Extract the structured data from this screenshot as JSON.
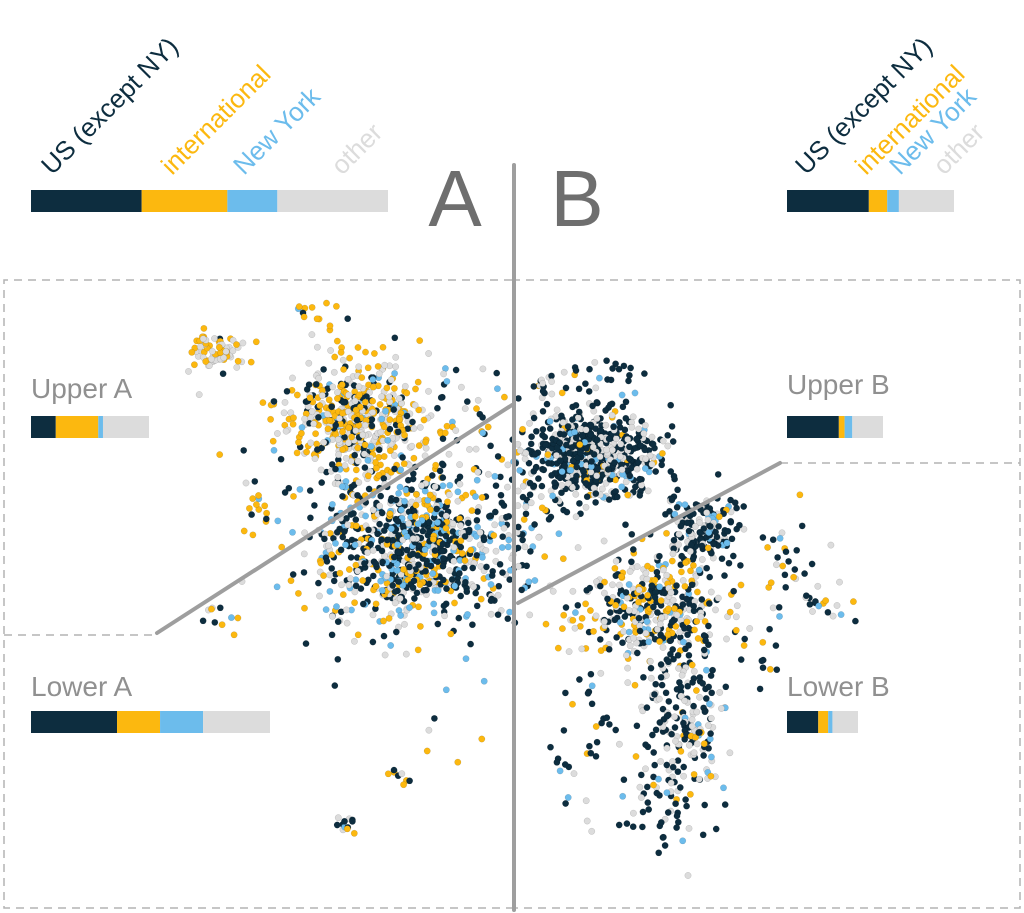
{
  "colors": {
    "us_except_ny": "#0d2d3f",
    "international": "#fcb80f",
    "new_york": "#6cbcec",
    "other": "#dcdcdc",
    "divider": "#9e9e9e",
    "label_gray": "#888888",
    "big_letter": "#6e6e6e"
  },
  "chart_data": {
    "type": "scatter",
    "title": "",
    "categories": [
      "US (except NY)",
      "international",
      "New York",
      "other"
    ],
    "legend_labels": {
      "us": "US (except NY)",
      "intl": "international",
      "ny": "New York",
      "other": "other"
    },
    "groups": {
      "A": {
        "label": "A",
        "shares": [
          0.31,
          0.24,
          0.14,
          0.31
        ]
      },
      "B": {
        "label": "B",
        "shares": [
          0.49,
          0.11,
          0.07,
          0.33
        ]
      }
    },
    "regions": [
      {
        "label": "Upper A",
        "shares": [
          0.21,
          0.36,
          0.04,
          0.39
        ]
      },
      {
        "label": "Lower A",
        "shares": [
          0.36,
          0.18,
          0.18,
          0.28
        ]
      },
      {
        "label": "Upper B",
        "shares": [
          0.54,
          0.06,
          0.08,
          0.32
        ]
      },
      {
        "label": "Lower B",
        "shares": [
          0.44,
          0.14,
          0.06,
          0.36
        ]
      }
    ],
    "series": [
      {
        "values_description_hidden": true
      }
    ],
    "grid": false,
    "legend_placement": "top"
  }
}
